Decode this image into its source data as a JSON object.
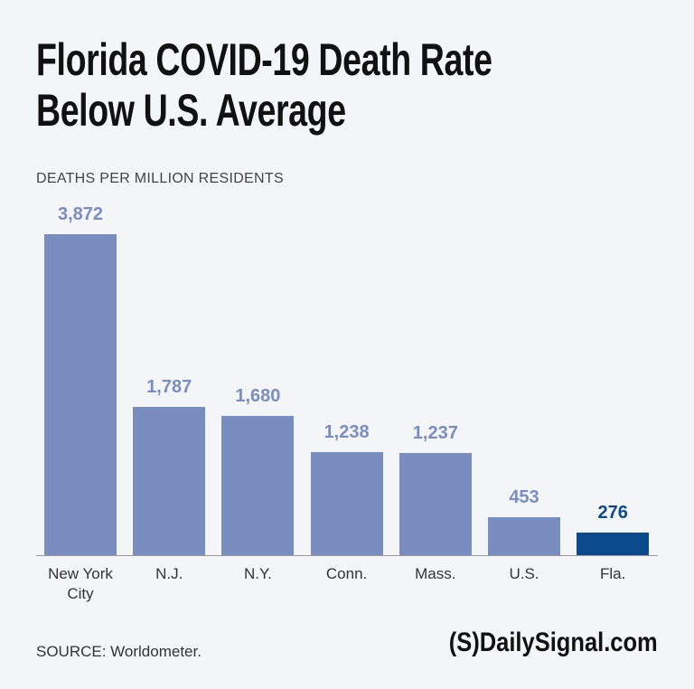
{
  "chart_data": {
    "type": "bar",
    "title": "Florida COVID-19 Death Rate Below U.S. Average",
    "subtitle": "DEATHS PER MILLION RESIDENTS",
    "categories": [
      "New York City",
      "N.J.",
      "N.Y.",
      "Conn.",
      "Mass.",
      "U.S.",
      "Fla."
    ],
    "values": [
      3872,
      1787,
      1680,
      1238,
      1237,
      453,
      276
    ],
    "value_labels": [
      "3,872",
      "1,787",
      "1,680",
      "1,238",
      "1,237",
      "453",
      "276"
    ],
    "colors": [
      "#7a8dc0",
      "#7a8dc0",
      "#7a8dc0",
      "#7a8dc0",
      "#7a8dc0",
      "#7a8dc0",
      "#0b4a8c"
    ],
    "source": "SOURCE: Worldometer.",
    "logo": "(S)DailySignal.com"
  }
}
